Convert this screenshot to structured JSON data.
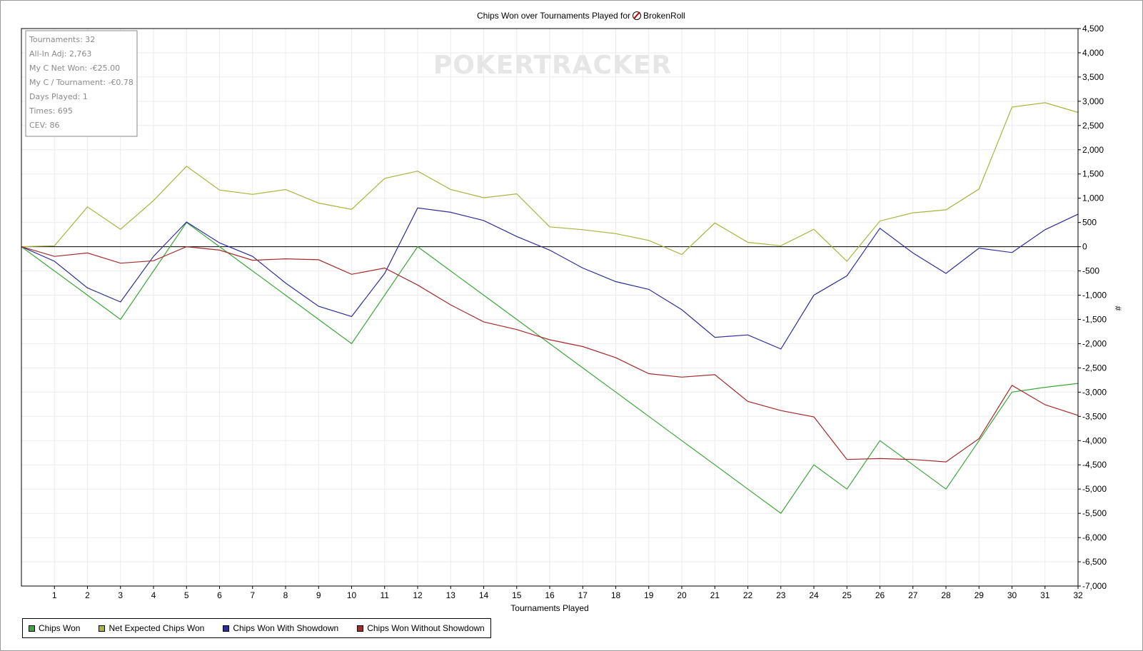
{
  "colors": {
    "background": "#ffffff",
    "grid": "#ebebeb",
    "zero_line": "#000000",
    "watermark": "#e6e6e6",
    "stats_text": "#8a8a8a"
  },
  "watermark_text": "POKERTRACKER",
  "stats_box": [
    "Tournaments: 32",
    "All-In Adj: 2,763",
    "My C Net Won: -€25.00",
    "My C / Tournament: -€0.78",
    "Days Played: 1",
    "Times: 695",
    "CEV: 86"
  ],
  "chart_data": {
    "type": "line",
    "title": "Chips Won over Tournaments Played for",
    "title_player": "BrokenRoll",
    "title_icon": "poker-client-icon",
    "xlabel": "Tournaments Played",
    "ylabel": "#",
    "xlim": [
      0,
      32
    ],
    "ylim": [
      -7000,
      4500
    ],
    "x_ticks": [
      1,
      2,
      3,
      4,
      5,
      6,
      7,
      8,
      9,
      10,
      11,
      12,
      13,
      14,
      15,
      16,
      17,
      18,
      19,
      20,
      21,
      22,
      23,
      24,
      25,
      26,
      27,
      28,
      29,
      30,
      31,
      32
    ],
    "y_ticks": [
      4500,
      4000,
      3500,
      3000,
      2500,
      2000,
      1500,
      1000,
      500,
      0,
      -500,
      -1000,
      -1500,
      -2000,
      -2500,
      -3000,
      -3500,
      -4000,
      -4500,
      -5000,
      -5500,
      -6000,
      -6500,
      -7000
    ],
    "y_tick_labels": [
      "4,500",
      "4,000",
      "3,500",
      "3,000",
      "2,500",
      "2,000",
      "1,500",
      "1,000",
      "500",
      "0",
      "-500",
      "-1,000",
      "-1,500",
      "-2,000",
      "-2,500",
      "-3,000",
      "-3,500",
      "-4,000",
      "-4,500",
      "-5,000",
      "-5,500",
      "-6,000",
      "-6,500",
      "-7,000"
    ],
    "grid": true,
    "legend_position": "bottom-left",
    "x": [
      0,
      1,
      2,
      3,
      4,
      5,
      6,
      7,
      8,
      9,
      10,
      11,
      12,
      13,
      14,
      15,
      16,
      17,
      18,
      19,
      20,
      21,
      22,
      23,
      24,
      25,
      26,
      27,
      28,
      29,
      30,
      31,
      32
    ],
    "series": [
      {
        "name": "Chips Won",
        "color": "#3aa83a",
        "values": [
          0,
          -500,
          -1000,
          -1500,
          -500,
          500,
          0,
          -500,
          -1000,
          -1500,
          -2000,
          -1000,
          0,
          -500,
          -1000,
          -1500,
          -2000,
          -2500,
          -3000,
          -3500,
          -4000,
          -4500,
          -5000,
          -5500,
          -4500,
          -5000,
          -4000,
          -4500,
          -5000,
          -4000,
          -3000,
          -2900,
          -2820
        ]
      },
      {
        "name": "Net Expected Chips Won",
        "color": "#a8b43a",
        "values": [
          0,
          20,
          820,
          360,
          950,
          1660,
          1170,
          1080,
          1180,
          900,
          770,
          1410,
          1560,
          1180,
          1010,
          1090,
          410,
          350,
          270,
          130,
          -160,
          490,
          90,
          20,
          360,
          -300,
          530,
          700,
          760,
          1190,
          2880,
          2970,
          2770
        ]
      },
      {
        "name": "Chips Won With Showdown",
        "color": "#2e2e9a",
        "values": [
          0,
          -300,
          -850,
          -1140,
          -200,
          510,
          80,
          -200,
          -750,
          -1230,
          -1440,
          -550,
          800,
          710,
          540,
          210,
          -70,
          -440,
          -720,
          -880,
          -1300,
          -1870,
          -1820,
          -2110,
          -1000,
          -600,
          380,
          -130,
          -550,
          -30,
          -120,
          350,
          670
        ]
      },
      {
        "name": "Chips Won Without Showdown",
        "color": "#a52a2a",
        "values": [
          0,
          -200,
          -130,
          -340,
          -290,
          0,
          -70,
          -280,
          -250,
          -270,
          -570,
          -440,
          -790,
          -1200,
          -1550,
          -1710,
          -1920,
          -2060,
          -2290,
          -2620,
          -2690,
          -2640,
          -3190,
          -3380,
          -3510,
          -4390,
          -4370,
          -4390,
          -4440,
          -3960,
          -2860,
          -3260,
          -3480
        ]
      }
    ]
  }
}
